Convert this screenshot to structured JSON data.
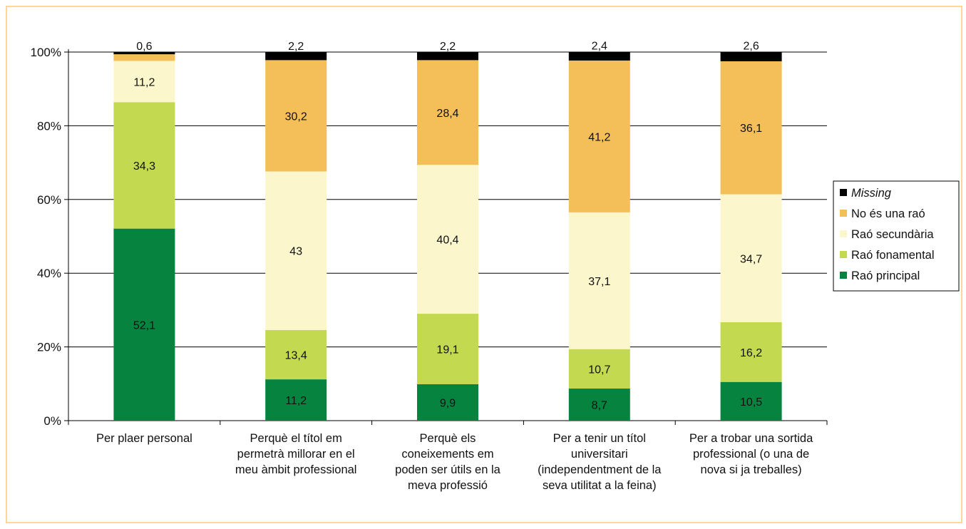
{
  "chart_data": {
    "type": "bar",
    "stacked": true,
    "percent_stacked": true,
    "categories": [
      [
        "Per plaer personal"
      ],
      [
        "Perquè el títol em",
        "permetrà millorar en el",
        "meu àmbit professional"
      ],
      [
        "Perquè els",
        "coneixements em",
        "poden ser útils en la",
        "meva professió"
      ],
      [
        "Per a tenir un títol",
        "universitari",
        "(independentment de la",
        "seva utilitat a la feina)"
      ],
      [
        "Per a trobar una sortida",
        "professional (o una de",
        "nova si ja treballes)"
      ]
    ],
    "series": [
      {
        "name": "Raó principal",
        "color": "#06843f",
        "values": [
          52.1,
          11.2,
          9.9,
          8.7,
          10.5
        ]
      },
      {
        "name": "Raó fonamental",
        "color": "#c2d950",
        "values": [
          34.3,
          13.4,
          19.1,
          10.7,
          16.2
        ]
      },
      {
        "name": "Raó secundària",
        "color": "#fbf6cb",
        "values": [
          11.2,
          43,
          40.4,
          37.1,
          34.7
        ]
      },
      {
        "name": "No és una raó",
        "color": "#f4bf59",
        "values": [
          1.8,
          30.2,
          28.4,
          41.2,
          36.1
        ]
      },
      {
        "name": "Missing",
        "color": "#000000",
        "italic": true,
        "values": [
          0.6,
          2.2,
          2.2,
          2.4,
          2.6
        ]
      }
    ],
    "value_labels": [
      [
        "52,1",
        "34,3",
        "11,2",
        "",
        "0,6"
      ],
      [
        "11,2",
        "13,4",
        "43",
        "30,2",
        "2,2"
      ],
      [
        "9,9",
        "19,1",
        "40,4",
        "28,4",
        "2,2"
      ],
      [
        "8,7",
        "10,7",
        "37,1",
        "41,2",
        "2,4"
      ],
      [
        "10,5",
        "16,2",
        "34,7",
        "36,1",
        "2,6"
      ]
    ],
    "y_ticks": [
      "0%",
      "20%",
      "40%",
      "60%",
      "80%",
      "100%"
    ],
    "ylim": [
      0,
      100
    ],
    "grid": true,
    "legend_position": "right",
    "legend_order": [
      "Missing",
      "No és una raó",
      "Raó secundària",
      "Raó fonamental",
      "Raó principal"
    ],
    "frame_color": "#fbd79a"
  }
}
